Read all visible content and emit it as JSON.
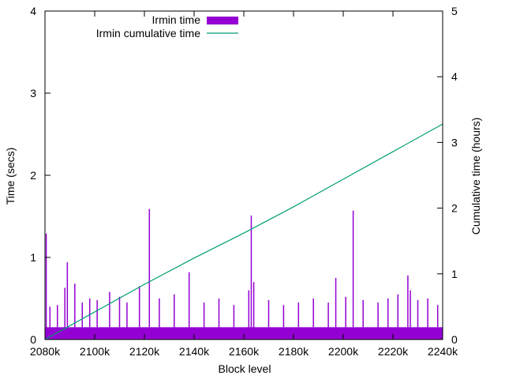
{
  "chart_data": {
    "type": "bar",
    "title": "",
    "xlabel": "Block level",
    "ylabel": "Time (secs)",
    "y2label": "Cumulative time (hours)",
    "xlim": [
      2080,
      2240
    ],
    "ylim": [
      0,
      4
    ],
    "y2lim": [
      0,
      5
    ],
    "x_ticks": [
      {
        "value": 2080,
        "label": "2080k"
      },
      {
        "value": 2100,
        "label": "2100k"
      },
      {
        "value": 2120,
        "label": "2120k"
      },
      {
        "value": 2140,
        "label": "2140k"
      },
      {
        "value": 2160,
        "label": "2160k"
      },
      {
        "value": 2180,
        "label": "2180k"
      },
      {
        "value": 2200,
        "label": "2200k"
      },
      {
        "value": 2220,
        "label": "2220k"
      },
      {
        "value": 2240,
        "label": "2240k"
      }
    ],
    "y_ticks": [
      {
        "value": 0,
        "label": "0"
      },
      {
        "value": 1,
        "label": "1"
      },
      {
        "value": 2,
        "label": "2"
      },
      {
        "value": 3,
        "label": "3"
      },
      {
        "value": 4,
        "label": "4"
      }
    ],
    "y2_ticks": [
      {
        "value": 0,
        "label": "0"
      },
      {
        "value": 1,
        "label": "1"
      },
      {
        "value": 2,
        "label": "2"
      },
      {
        "value": 3,
        "label": "3"
      },
      {
        "value": 4,
        "label": "4"
      },
      {
        "value": 5,
        "label": "5"
      }
    ],
    "grid": false,
    "legend_position": "top-left",
    "series": [
      {
        "name": "Irmin time",
        "type": "bar",
        "axis": "left",
        "color": "#9400d3",
        "baseline": 0.15,
        "spikes": [
          {
            "x": 2080.5,
            "y": 1.29
          },
          {
            "x": 2082,
            "y": 0.4
          },
          {
            "x": 2085,
            "y": 0.42
          },
          {
            "x": 2088,
            "y": 0.63
          },
          {
            "x": 2089,
            "y": 0.94
          },
          {
            "x": 2092,
            "y": 0.68
          },
          {
            "x": 2095,
            "y": 0.45
          },
          {
            "x": 2098,
            "y": 0.5
          },
          {
            "x": 2101,
            "y": 0.48
          },
          {
            "x": 2106,
            "y": 0.58
          },
          {
            "x": 2110,
            "y": 0.52
          },
          {
            "x": 2113,
            "y": 0.45
          },
          {
            "x": 2118,
            "y": 0.65
          },
          {
            "x": 2122,
            "y": 1.59
          },
          {
            "x": 2126,
            "y": 0.5
          },
          {
            "x": 2132,
            "y": 0.55
          },
          {
            "x": 2138,
            "y": 0.82
          },
          {
            "x": 2144,
            "y": 0.45
          },
          {
            "x": 2150,
            "y": 0.5
          },
          {
            "x": 2156,
            "y": 0.42
          },
          {
            "x": 2162,
            "y": 0.6
          },
          {
            "x": 2163,
            "y": 1.51
          },
          {
            "x": 2164,
            "y": 0.7
          },
          {
            "x": 2170,
            "y": 0.48
          },
          {
            "x": 2176,
            "y": 0.42
          },
          {
            "x": 2182,
            "y": 0.45
          },
          {
            "x": 2188,
            "y": 0.5
          },
          {
            "x": 2194,
            "y": 0.45
          },
          {
            "x": 2197,
            "y": 0.75
          },
          {
            "x": 2201,
            "y": 0.52
          },
          {
            "x": 2204,
            "y": 1.57
          },
          {
            "x": 2208,
            "y": 0.48
          },
          {
            "x": 2214,
            "y": 0.45
          },
          {
            "x": 2218,
            "y": 0.5
          },
          {
            "x": 2222,
            "y": 0.55
          },
          {
            "x": 2226,
            "y": 0.78
          },
          {
            "x": 2227,
            "y": 0.6
          },
          {
            "x": 2230,
            "y": 0.48
          },
          {
            "x": 2234,
            "y": 0.5
          },
          {
            "x": 2238,
            "y": 0.42
          }
        ]
      },
      {
        "name": "Irmin cumulative time",
        "type": "line",
        "axis": "right",
        "color": "#009e73",
        "x": [
          2080,
          2100,
          2120,
          2140,
          2160,
          2180,
          2200,
          2220,
          2240
        ],
        "y": [
          0,
          0.42,
          0.84,
          1.24,
          1.62,
          2.02,
          2.44,
          2.86,
          3.28
        ]
      }
    ]
  }
}
